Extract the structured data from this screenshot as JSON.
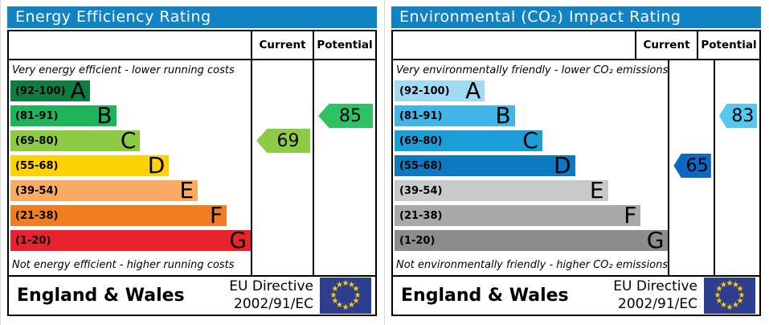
{
  "title_bar_color": "#1182c4",
  "eu_flag": {
    "bg": "#2e3e8f",
    "star": "#ffcc00"
  },
  "chart_data": [
    {
      "type": "bar",
      "title": "Energy Efficiency Rating",
      "categories": [
        "A (92-100)",
        "B (81-91)",
        "C (69-80)",
        "D (55-68)",
        "E (39-54)",
        "F (21-38)",
        "G (1-20)"
      ],
      "series": [
        {
          "name": "Current",
          "value": 69,
          "band": "C"
        },
        {
          "name": "Potential",
          "value": 85,
          "band": "B"
        }
      ],
      "top_label": "Very energy efficient - lower running costs",
      "bottom_label": "Not energy efficient - higher running costs",
      "region": "England & Wales",
      "directive": "EU Directive 2002/91/EC",
      "value_range": [
        1,
        100
      ]
    },
    {
      "type": "bar",
      "title": "Environmental (CO₂) Impact Rating",
      "categories": [
        "A (92-100)",
        "B (81-91)",
        "C (69-80)",
        "D (55-68)",
        "E (39-54)",
        "F (21-38)",
        "G (1-20)"
      ],
      "series": [
        {
          "name": "Current",
          "value": 65,
          "band": "D"
        },
        {
          "name": "Potential",
          "value": 83,
          "band": "B"
        }
      ],
      "top_label": "Very environmentally friendly - lower CO₂ emissions",
      "bottom_label": "Not environmentally friendly - higher CO₂ emissions",
      "region": "England & Wales",
      "directive": "EU Directive 2002/91/EC",
      "value_range": [
        1,
        100
      ]
    }
  ],
  "panels": [
    {
      "title": "Energy Efficiency Rating",
      "columns": {
        "current": "Current",
        "potential": "Potential"
      },
      "top_caption": "Very energy efficient - lower running costs",
      "bottom_caption": "Not energy efficient - higher running costs",
      "bands": [
        {
          "letter": "A",
          "range": "(92-100)",
          "color": "#0d7d43",
          "width_pct": 33
        },
        {
          "letter": "B",
          "range": "(81-91)",
          "color": "#1fb35a",
          "width_pct": 44
        },
        {
          "letter": "C",
          "range": "(69-80)",
          "color": "#8ecb45",
          "width_pct": 54
        },
        {
          "letter": "D",
          "range": "(55-68)",
          "color": "#ffd203",
          "width_pct": 66
        },
        {
          "letter": "E",
          "range": "(39-54)",
          "color": "#f9ab63",
          "width_pct": 78
        },
        {
          "letter": "F",
          "range": "(21-38)",
          "color": "#f07d22",
          "width_pct": 90
        },
        {
          "letter": "G",
          "range": "(1-20)",
          "color": "#e9232d",
          "width_pct": 100
        }
      ],
      "current": {
        "value": "69",
        "band": "C",
        "row": 2,
        "color": "#8ecb45"
      },
      "potential": {
        "value": "85",
        "band": "B",
        "row": 1,
        "color": "#2fc263"
      },
      "footer": {
        "region": "England & Wales",
        "directive_line1": "EU Directive",
        "directive_line2": "2002/91/EC"
      }
    },
    {
      "title": "Environmental (CO₂) Impact Rating",
      "columns": {
        "current": "Current",
        "potential": "Potential"
      },
      "top_caption": "Very environmentally friendly - lower CO₂ emissions",
      "bottom_caption": "Not environmentally friendly - higher CO₂ emissions",
      "bands": [
        {
          "letter": "A",
          "range": "(92-100)",
          "color": "#a1daf3",
          "width_pct": 33
        },
        {
          "letter": "B",
          "range": "(81-91)",
          "color": "#40b6e8",
          "width_pct": 44
        },
        {
          "letter": "C",
          "range": "(69-80)",
          "color": "#1e9ed6",
          "width_pct": 54
        },
        {
          "letter": "D",
          "range": "(55-68)",
          "color": "#0b7ac2",
          "width_pct": 66
        },
        {
          "letter": "E",
          "range": "(39-54)",
          "color": "#c8c9ca",
          "width_pct": 78
        },
        {
          "letter": "F",
          "range": "(21-38)",
          "color": "#a8a9ab",
          "width_pct": 90
        },
        {
          "letter": "G",
          "range": "(1-20)",
          "color": "#8a8c8e",
          "width_pct": 100
        }
      ],
      "current": {
        "value": "65",
        "band": "D",
        "row": 3,
        "color": "#0b68c4"
      },
      "potential": {
        "value": "83",
        "band": "B",
        "row": 1,
        "color": "#55c8f2"
      },
      "footer": {
        "region": "England & Wales",
        "directive_line1": "EU Directive",
        "directive_line2": "2002/91/EC"
      }
    }
  ]
}
